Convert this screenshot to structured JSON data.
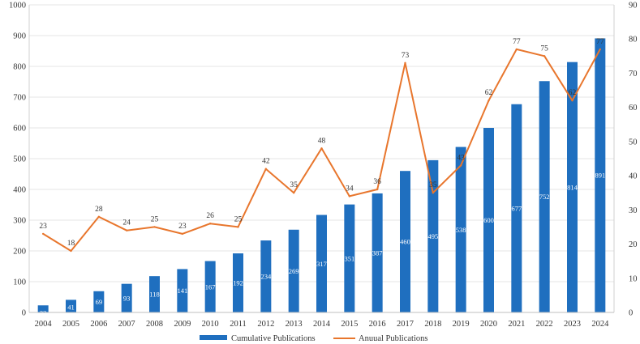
{
  "chart_data": {
    "type": "bar",
    "categories": [
      "2004",
      "2005",
      "2006",
      "2007",
      "2008",
      "2009",
      "2010",
      "2011",
      "2012",
      "2013",
      "2014",
      "2015",
      "2016",
      "2017",
      "2018",
      "2019",
      "2020",
      "2021",
      "2022",
      "2023",
      "2024"
    ],
    "series": [
      {
        "name": "Cumulative Publications",
        "type": "bar",
        "axis": "left",
        "color": "#1f6fbf",
        "values": [
          23,
          41,
          69,
          93,
          118,
          141,
          167,
          192,
          234,
          269,
          317,
          351,
          387,
          460,
          495,
          538,
          600,
          677,
          752,
          814,
          891
        ]
      },
      {
        "name": "Anuual Publications",
        "type": "line",
        "axis": "right",
        "color": "#e8762d",
        "values": [
          23,
          18,
          28,
          24,
          25,
          23,
          26,
          25,
          42,
          35,
          48,
          34,
          36,
          73,
          35,
          43,
          62,
          77,
          75,
          62,
          77
        ]
      }
    ],
    "line_labels": [
      "23",
      "18",
      "28",
      "24",
      "25",
      "23",
      "26",
      "25",
      "42",
      "35",
      "48",
      "34",
      "36",
      "73",
      "35",
      "43",
      "62",
      "77",
      "75",
      "62",
      "77"
    ],
    "bar_labels": [
      "23",
      "41",
      "69",
      "93",
      "118",
      "141",
      "167",
      "192",
      "234",
      "269",
      "317",
      "351",
      "387",
      "460",
      "495",
      "538",
      "600",
      "677",
      "752",
      "814",
      "891"
    ],
    "ylim_left": [
      0,
      1000
    ],
    "ylim_right": [
      0,
      90
    ],
    "left_ticks": [
      "0",
      "100",
      "200",
      "300",
      "400",
      "500",
      "600",
      "700",
      "800",
      "900",
      "1000"
    ],
    "right_ticks": [
      "0",
      "10",
      "20",
      "30",
      "40",
      "50",
      "60",
      "70",
      "80",
      "90"
    ],
    "title": "",
    "xlabel": "",
    "ylabel": "",
    "grid": true,
    "legend_position": "bottom"
  }
}
